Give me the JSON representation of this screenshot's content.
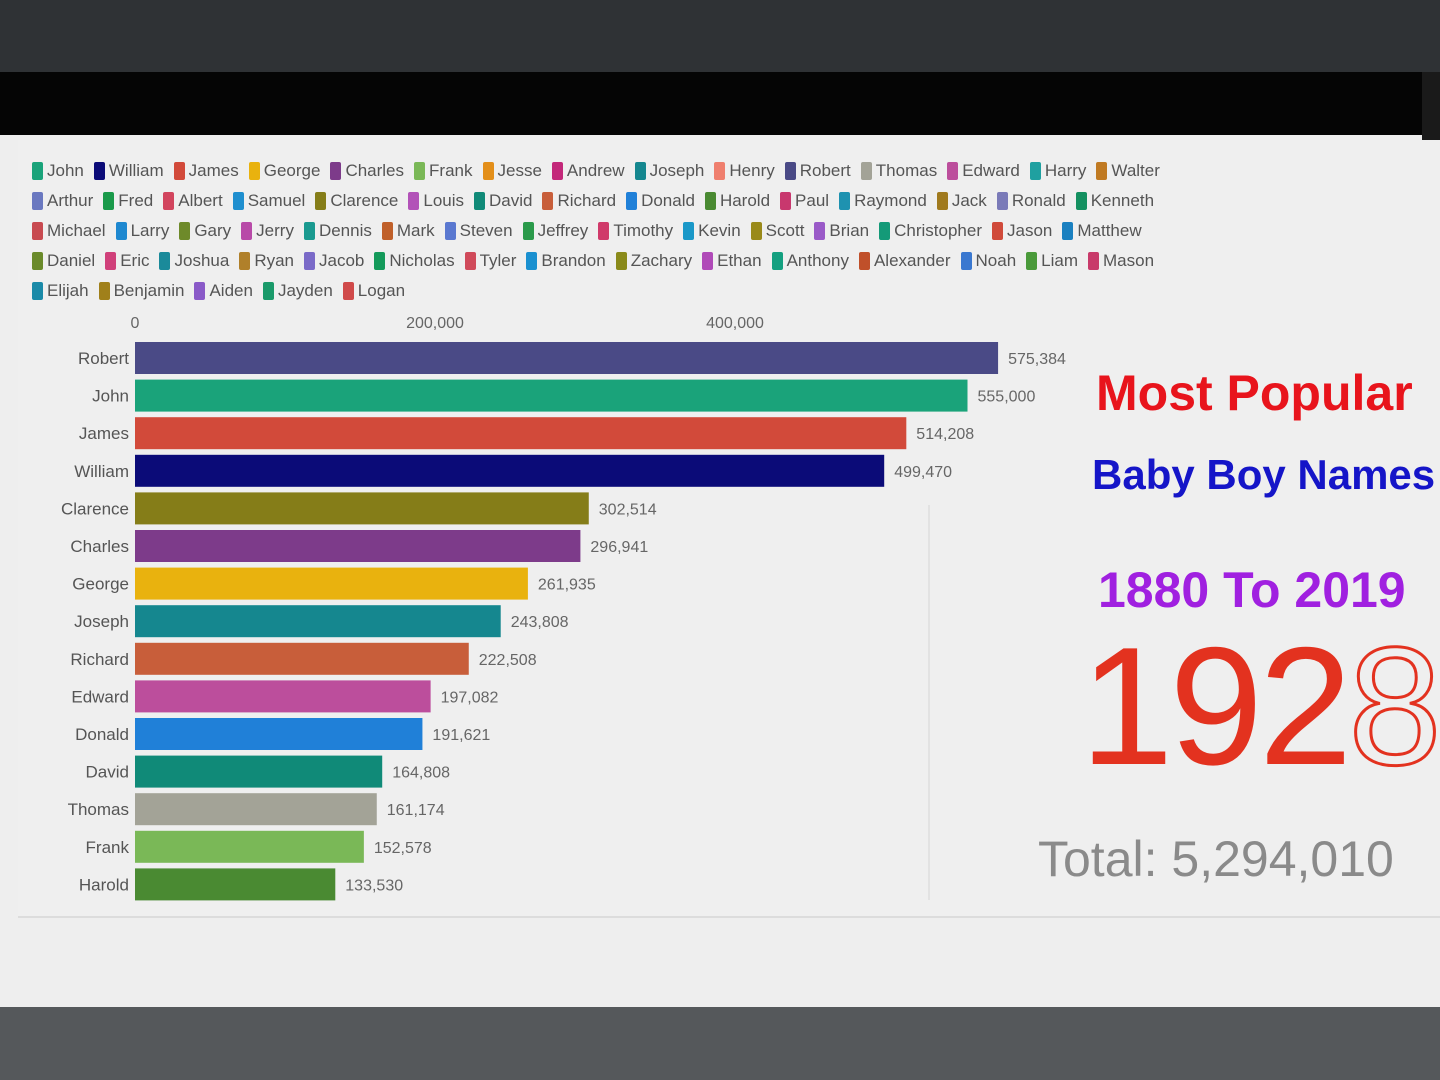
{
  "overlay": {
    "title_line1": "Most Popular",
    "title_line2": "Baby Boy Names",
    "title_line3": "1880 To 2019",
    "year_main": "192",
    "year_transition_digit": "8",
    "total": "Total: 5,294,010"
  },
  "legend": [
    [
      {
        "name": "John",
        "color": "#1aa37a"
      },
      {
        "name": "William",
        "color": "#0b0b78"
      },
      {
        "name": "James",
        "color": "#d24a3a"
      },
      {
        "name": "George",
        "color": "#e9b20e"
      },
      {
        "name": "Charles",
        "color": "#7d3b8a"
      },
      {
        "name": "Frank",
        "color": "#7ab857"
      },
      {
        "name": "Jesse",
        "color": "#e38f1a"
      },
      {
        "name": "Andrew",
        "color": "#c3287a"
      },
      {
        "name": "Joseph",
        "color": "#15878f"
      },
      {
        "name": "Henry",
        "color": "#ef7f6e"
      },
      {
        "name": "Robert",
        "color": "#4a4a86"
      },
      {
        "name": "Thomas",
        "color": "#a3a397"
      },
      {
        "name": "Edward",
        "color": "#bc4e9c"
      },
      {
        "name": "Harry",
        "color": "#1fa0a0"
      },
      {
        "name": "Walter",
        "color": "#c07a22"
      }
    ],
    [
      {
        "name": "Arthur",
        "color": "#6a78c0"
      },
      {
        "name": "Fred",
        "color": "#1a9a4a"
      },
      {
        "name": "Albert",
        "color": "#d2455e"
      },
      {
        "name": "Samuel",
        "color": "#1f8fcf"
      },
      {
        "name": "Clarence",
        "color": "#857d18"
      },
      {
        "name": "Louis",
        "color": "#b252b8"
      },
      {
        "name": "David",
        "color": "#108a78"
      },
      {
        "name": "Richard",
        "color": "#c85e3a"
      },
      {
        "name": "Donald",
        "color": "#2080d8"
      },
      {
        "name": "Harold",
        "color": "#4a8a32"
      },
      {
        "name": "Paul",
        "color": "#c8386e"
      },
      {
        "name": "Raymond",
        "color": "#1e92b0"
      },
      {
        "name": "Jack",
        "color": "#a07a1e"
      },
      {
        "name": "Ronald",
        "color": "#7a7ab8"
      },
      {
        "name": "Kenneth",
        "color": "#149060"
      }
    ],
    [
      {
        "name": "Michael",
        "color": "#c84a50"
      },
      {
        "name": "Larry",
        "color": "#1e88d0"
      },
      {
        "name": "Gary",
        "color": "#6e8a2a"
      },
      {
        "name": "Jerry",
        "color": "#b84aa8"
      },
      {
        "name": "Dennis",
        "color": "#1a9a90"
      },
      {
        "name": "Mark",
        "color": "#c0602a"
      },
      {
        "name": "Steven",
        "color": "#5a78d0"
      },
      {
        "name": "Jeffrey",
        "color": "#2a9a4a"
      },
      {
        "name": "Timothy",
        "color": "#d03a6a"
      },
      {
        "name": "Kevin",
        "color": "#1a98c8"
      },
      {
        "name": "Scott",
        "color": "#9a8a1a"
      },
      {
        "name": "Brian",
        "color": "#9a5ac8"
      },
      {
        "name": "Christopher",
        "color": "#149a78"
      },
      {
        "name": "Jason",
        "color": "#d04a3a"
      },
      {
        "name": "Matthew",
        "color": "#1a80c0"
      }
    ],
    [
      {
        "name": "Daniel",
        "color": "#6a8a2a"
      },
      {
        "name": "Eric",
        "color": "#d0407a"
      },
      {
        "name": "Joshua",
        "color": "#1a8a9a"
      },
      {
        "name": "Ryan",
        "color": "#b0802a"
      },
      {
        "name": "Jacob",
        "color": "#7a6ac8"
      },
      {
        "name": "Nicholas",
        "color": "#149a5a"
      },
      {
        "name": "Tyler",
        "color": "#d04a5a"
      },
      {
        "name": "Brandon",
        "color": "#1a90d0"
      },
      {
        "name": "Zachary",
        "color": "#8a8a1a"
      },
      {
        "name": "Ethan",
        "color": "#b04ab8"
      },
      {
        "name": "Anthony",
        "color": "#14a080"
      },
      {
        "name": "Alexander",
        "color": "#c0502a"
      },
      {
        "name": "Noah",
        "color": "#3a78d0"
      },
      {
        "name": "Liam",
        "color": "#4a9a3a"
      },
      {
        "name": "Mason",
        "color": "#c83a6a"
      }
    ],
    [
      {
        "name": "Elijah",
        "color": "#1a8aa8"
      },
      {
        "name": "Benjamin",
        "color": "#a0801a"
      },
      {
        "name": "Aiden",
        "color": "#8a5ac8"
      },
      {
        "name": "Jayden",
        "color": "#1a9a6a"
      },
      {
        "name": "Logan",
        "color": "#d04a4a"
      }
    ]
  ],
  "chart_data": {
    "type": "bar",
    "orientation": "horizontal",
    "title": "Most Popular Baby Boy Names 1880 To 2019",
    "year": "1928",
    "total": "5,294,010",
    "xlim": [
      0,
      560000
    ],
    "xticks": [
      0,
      200000,
      400000
    ],
    "xtick_labels": [
      "0",
      "200,000",
      "400,000"
    ],
    "categories": [
      "Robert",
      "John",
      "James",
      "William",
      "Clarence",
      "Charles",
      "George",
      "Joseph",
      "Richard",
      "Edward",
      "Donald",
      "David",
      "Thomas",
      "Frank",
      "Harold"
    ],
    "values": [
      575384,
      555000,
      514208,
      499470,
      302514,
      296941,
      261935,
      243808,
      222508,
      197082,
      191621,
      164808,
      161174,
      152578,
      133530
    ],
    "value_labels": [
      "575,384",
      "555,000",
      "514,208",
      "499,470",
      "302,514",
      "296,941",
      "261,935",
      "243,808",
      "222,508",
      "197,082",
      "191,621",
      "164,808",
      "161,174",
      "152,578",
      "133,530"
    ],
    "colors": [
      "#4a4a86",
      "#1aa37a",
      "#d24a3a",
      "#0b0b78",
      "#857d18",
      "#7d3b8a",
      "#e9b20e",
      "#15878f",
      "#c85e3a",
      "#bc4e9c",
      "#2080d8",
      "#108a78",
      "#a3a397",
      "#7ab857",
      "#4a8a32"
    ]
  }
}
